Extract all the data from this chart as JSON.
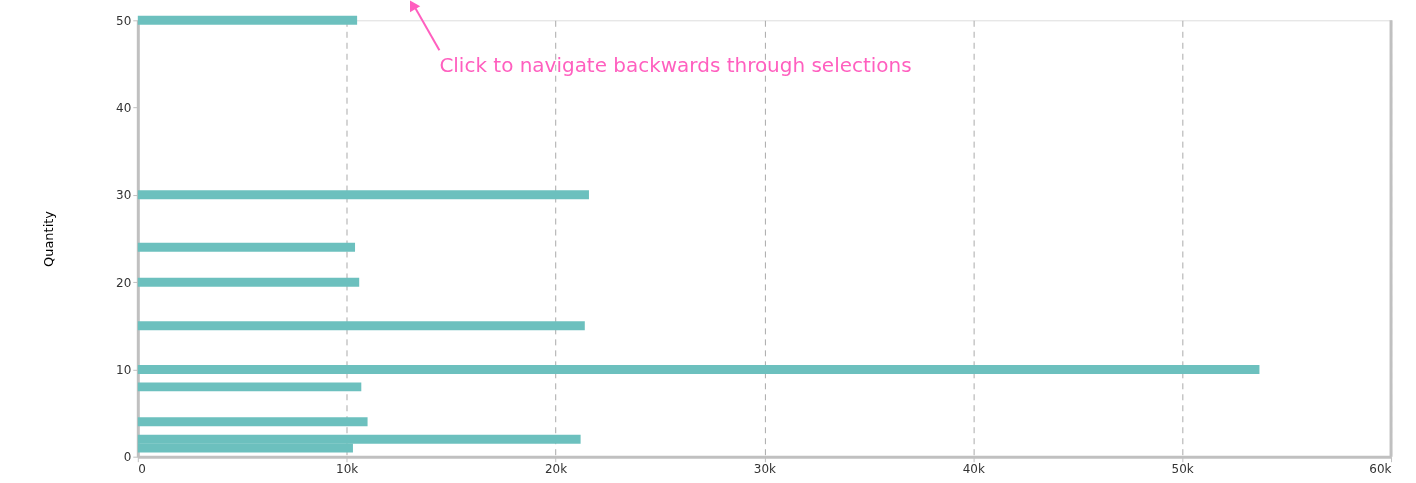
{
  "chart_data": {
    "type": "bar",
    "orientation": "horizontal",
    "ylabel": "Quantity",
    "x": [
      50,
      30,
      24,
      20,
      15,
      10,
      8,
      4,
      2,
      1
    ],
    "values": [
      10.5,
      21.6,
      10.4,
      10.6,
      21.4,
      53.7,
      10.7,
      11.0,
      21.2,
      10.3
    ],
    "color": "#6cc0be",
    "xlim": [
      0,
      60
    ],
    "xticks": [
      {
        "value": 0,
        "label": "0"
      },
      {
        "value": 10,
        "label": "10k"
      },
      {
        "value": 20,
        "label": "20k"
      },
      {
        "value": 30,
        "label": "30k"
      },
      {
        "value": 40,
        "label": "40k"
      },
      {
        "value": 50,
        "label": "50k"
      },
      {
        "value": 60,
        "label": "60k"
      }
    ],
    "ylim": [
      0,
      50
    ],
    "yticks": [
      0,
      10,
      20,
      30,
      40,
      50
    ],
    "grid": "x",
    "annotations": [
      "Click to navigate backwards through selections"
    ]
  }
}
